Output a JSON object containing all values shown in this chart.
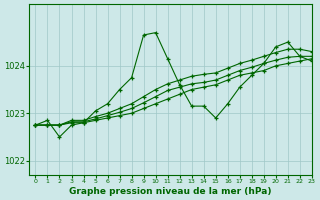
{
  "title": "Graphe pression niveau de la mer (hPa)",
  "background_color": "#cde8e8",
  "line_color": "#006600",
  "grid_color": "#a0c8c8",
  "xlim": [
    -0.5,
    23
  ],
  "ylim": [
    1021.7,
    1025.3
  ],
  "xticks": [
    0,
    1,
    2,
    3,
    4,
    5,
    6,
    7,
    8,
    9,
    10,
    11,
    12,
    13,
    14,
    15,
    16,
    17,
    18,
    19,
    20,
    21,
    22,
    23
  ],
  "yticks": [
    1022,
    1023,
    1024
  ],
  "series": [
    {
      "x": [
        0,
        1,
        2,
        3,
        4,
        5,
        6,
        7,
        8,
        9,
        10,
        11,
        12,
        13,
        14,
        15,
        16,
        17,
        18,
        19,
        20,
        21,
        22,
        23
      ],
      "y": [
        1022.75,
        1022.85,
        1022.5,
        1022.75,
        1022.8,
        1023.05,
        1023.2,
        1023.5,
        1023.75,
        1024.65,
        1024.7,
        1024.15,
        1023.6,
        1023.15,
        1023.15,
        1022.9,
        1023.2,
        1023.55,
        1023.8,
        1024.05,
        1024.4,
        1024.5,
        1024.2,
        1024.1
      ]
    },
    {
      "x": [
        0,
        1,
        2,
        3,
        4,
        5,
        6,
        7,
        8,
        9,
        10,
        11,
        12,
        13,
        14,
        15,
        16,
        17,
        18,
        19,
        20,
        21,
        22,
        23
      ],
      "y": [
        1022.75,
        1022.75,
        1022.75,
        1022.8,
        1022.8,
        1022.85,
        1022.9,
        1022.95,
        1023.0,
        1023.1,
        1023.2,
        1023.3,
        1023.4,
        1023.5,
        1023.55,
        1023.6,
        1023.7,
        1023.8,
        1023.85,
        1023.9,
        1024.0,
        1024.05,
        1024.1,
        1024.15
      ]
    },
    {
      "x": [
        0,
        1,
        2,
        3,
        4,
        5,
        6,
        7,
        8,
        9,
        10,
        11,
        12,
        13,
        14,
        15,
        16,
        17,
        18,
        19,
        20,
        21,
        22,
        23
      ],
      "y": [
        1022.75,
        1022.75,
        1022.75,
        1022.82,
        1022.82,
        1022.88,
        1022.95,
        1023.02,
        1023.1,
        1023.22,
        1023.35,
        1023.48,
        1023.55,
        1023.62,
        1023.65,
        1023.7,
        1023.8,
        1023.9,
        1023.97,
        1024.05,
        1024.12,
        1024.18,
        1024.2,
        1024.2
      ]
    },
    {
      "x": [
        0,
        1,
        2,
        3,
        4,
        5,
        6,
        7,
        8,
        9,
        10,
        11,
        12,
        13,
        14,
        15,
        16,
        17,
        18,
        19,
        20,
        21,
        22,
        23
      ],
      "y": [
        1022.75,
        1022.75,
        1022.75,
        1022.85,
        1022.85,
        1022.93,
        1023.0,
        1023.1,
        1023.2,
        1023.35,
        1023.5,
        1023.62,
        1023.7,
        1023.78,
        1023.82,
        1023.85,
        1023.95,
        1024.05,
        1024.12,
        1024.2,
        1024.28,
        1024.35,
        1024.35,
        1024.3
      ]
    }
  ]
}
